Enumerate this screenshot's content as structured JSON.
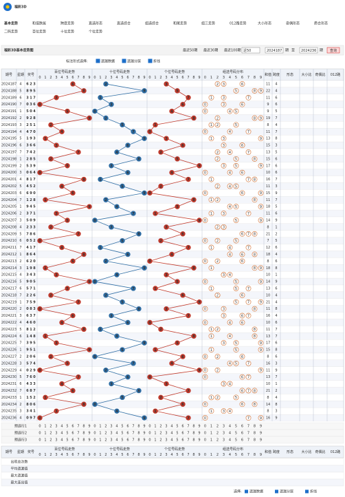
{
  "header": {
    "logo": "福彩3D",
    "tabs": [
      "基本走势",
      "和值跌属",
      "跨度走势",
      "直选形态",
      "直选综合",
      "组选综合",
      "和尾走势",
      "组三走势",
      "012路走势",
      "大小形态",
      "奇偶形态",
      "质合形态"
    ],
    "subtabs": [
      "二码走势",
      "百位走势",
      "十位走势",
      "个位走势"
    ]
  },
  "toolbar": {
    "title": "福彩3D基本走势图",
    "links": [
      "最近50期",
      "最近30期",
      "最近100期"
    ],
    "select": "近50",
    "from": 2024187,
    "unit": "期",
    "to_word": "至",
    "to": 2024236,
    "button": "查询"
  },
  "options": {
    "label": "标注形式选择:",
    "items": [
      "遗漏数据",
      "遗漏分层",
      "折线"
    ]
  },
  "table": {
    "head": [
      "期号",
      "星期",
      "奖号"
    ],
    "sections": [
      "百位号码走势",
      "十位号码走势",
      "个位号码走势",
      "组选号码分布"
    ],
    "extras": [
      "和值",
      "跨度",
      "形态",
      "大小比",
      "奇偶比",
      "012路"
    ],
    "digits": [
      0,
      1,
      2,
      3,
      4,
      5,
      6,
      7,
      8,
      9
    ],
    "rows": [
      {
        "period": 2024187,
        "week": 4,
        "digits": [
          6,
          2,
          3
        ],
        "sum": 11,
        "span": 4
      },
      {
        "period": 2024188,
        "week": 5,
        "digits": [
          8,
          9,
          5
        ],
        "sum": 22,
        "span": 4
      },
      {
        "period": 2024189,
        "week": 6,
        "digits": [
          3,
          1,
          7
        ],
        "sum": 11,
        "span": 6
      },
      {
        "period": 2024190,
        "week": 7,
        "digits": [
          0,
          3,
          6
        ],
        "sum": 9,
        "span": 6
      },
      {
        "period": 2024191,
        "week": 1,
        "digits": [
          5,
          0,
          4
        ],
        "sum": 9,
        "span": 5
      },
      {
        "period": 2024192,
        "week": 2,
        "digits": [
          9,
          2,
          8
        ],
        "sum": 19,
        "span": 7
      },
      {
        "period": 2024193,
        "week": 3,
        "digits": [
          2,
          5,
          1
        ],
        "sum": 8,
        "span": 4
      },
      {
        "period": 2024194,
        "week": 4,
        "digits": [
          4,
          7,
          0
        ],
        "sum": 11,
        "span": 7
      },
      {
        "period": 2024195,
        "week": 5,
        "digits": [
          1,
          9,
          3
        ],
        "sum": 13,
        "span": 8
      },
      {
        "period": 2024196,
        "week": 6,
        "digits": [
          3,
          6,
          6
        ],
        "sum": 15,
        "span": 3
      },
      {
        "period": 2024197,
        "week": 7,
        "digits": [
          7,
          4,
          2
        ],
        "sum": 13,
        "span": 5
      },
      {
        "period": 2024198,
        "week": 1,
        "digits": [
          2,
          8,
          5
        ],
        "sum": 15,
        "span": 6
      },
      {
        "period": 2024199,
        "week": 2,
        "digits": [
          5,
          3,
          9
        ],
        "sum": 17,
        "span": 6
      },
      {
        "period": 2024200,
        "week": 3,
        "digits": [
          0,
          6,
          4
        ],
        "sum": 10,
        "span": 6
      },
      {
        "period": 2024201,
        "week": 4,
        "digits": [
          8,
          1,
          7
        ],
        "sum": 16,
        "span": 7
      },
      {
        "period": 2024202,
        "week": 5,
        "digits": [
          4,
          5,
          2
        ],
        "sum": 11,
        "span": 3
      },
      {
        "period": 2024203,
        "week": 6,
        "digits": [
          6,
          9,
          0
        ],
        "sum": 15,
        "span": 9
      },
      {
        "period": 2024204,
        "week": 7,
        "digits": [
          1,
          2,
          8
        ],
        "sum": 11,
        "span": 7
      },
      {
        "period": 2024205,
        "week": 1,
        "digits": [
          9,
          4,
          5
        ],
        "sum": 18,
        "span": 5
      },
      {
        "period": 2024206,
        "week": 2,
        "digits": [
          3,
          7,
          1
        ],
        "sum": 11,
        "span": 6
      },
      {
        "period": 2024207,
        "week": 3,
        "digits": [
          5,
          0,
          9
        ],
        "sum": 14,
        "span": 9
      },
      {
        "period": 2024208,
        "week": 4,
        "digits": [
          2,
          3,
          3
        ],
        "sum": 8,
        "span": 1
      },
      {
        "period": 2024209,
        "week": 5,
        "digits": [
          7,
          8,
          6
        ],
        "sum": 21,
        "span": 2
      },
      {
        "period": 2024210,
        "week": 6,
        "digits": [
          0,
          5,
          2
        ],
        "sum": 7,
        "span": 5
      },
      {
        "period": 2024211,
        "week": 7,
        "digits": [
          4,
          1,
          7
        ],
        "sum": 12,
        "span": 6
      },
      {
        "period": 2024212,
        "week": 1,
        "digits": [
          8,
          6,
          4
        ],
        "sum": 18,
        "span": 4
      },
      {
        "period": 2024213,
        "week": 2,
        "digits": [
          6,
          2,
          0
        ],
        "sum": 8,
        "span": 6
      },
      {
        "period": 2024214,
        "week": 3,
        "digits": [
          1,
          9,
          8
        ],
        "sum": 18,
        "span": 8
      },
      {
        "period": 2024215,
        "week": 4,
        "digits": [
          3,
          4,
          3
        ],
        "sum": 10,
        "span": 1
      },
      {
        "period": 2024216,
        "week": 5,
        "digits": [
          9,
          0,
          5
        ],
        "sum": 14,
        "span": 9
      },
      {
        "period": 2024217,
        "week": 6,
        "digits": [
          5,
          7,
          1
        ],
        "sum": 13,
        "span": 6
      },
      {
        "period": 2024218,
        "week": 7,
        "digits": [
          2,
          2,
          6
        ],
        "sum": 10,
        "span": 4
      },
      {
        "period": 2024219,
        "week": 1,
        "digits": [
          7,
          5,
          9
        ],
        "sum": 21,
        "span": 4
      },
      {
        "period": 2024220,
        "week": 2,
        "digits": [
          0,
          8,
          3
        ],
        "sum": 11,
        "span": 8
      },
      {
        "period": 2024221,
        "week": 3,
        "digits": [
          6,
          3,
          7
        ],
        "sum": 16,
        "span": 4
      },
      {
        "period": 2024222,
        "week": 4,
        "digits": [
          4,
          6,
          0
        ],
        "sum": 10,
        "span": 6
      },
      {
        "period": 2024223,
        "week": 5,
        "digits": [
          8,
          1,
          2
        ],
        "sum": 11,
        "span": 7
      },
      {
        "period": 2024224,
        "week": 6,
        "digits": [
          1,
          4,
          8
        ],
        "sum": 13,
        "span": 7
      },
      {
        "period": 2024225,
        "week": 7,
        "digits": [
          3,
          9,
          5
        ],
        "sum": 17,
        "span": 6
      },
      {
        "period": 2024226,
        "week": 1,
        "digits": [
          9,
          5,
          1
        ],
        "sum": 15,
        "span": 8
      },
      {
        "period": 2024227,
        "week": 2,
        "digits": [
          2,
          0,
          6
        ],
        "sum": 8,
        "span": 6
      },
      {
        "period": 2024228,
        "week": 3,
        "digits": [
          5,
          7,
          4
        ],
        "sum": 16,
        "span": 3
      },
      {
        "period": 2024229,
        "week": 4,
        "digits": [
          0,
          2,
          9
        ],
        "sum": 11,
        "span": 9
      },
      {
        "period": 2024230,
        "week": 5,
        "digits": [
          7,
          6,
          0
        ],
        "sum": 13,
        "span": 7
      },
      {
        "period": 2024231,
        "week": 6,
        "digits": [
          4,
          3,
          3
        ],
        "sum": 10,
        "span": 1
      },
      {
        "period": 2024232,
        "week": 7,
        "digits": [
          6,
          8,
          7
        ],
        "sum": 21,
        "span": 2
      },
      {
        "period": 2024233,
        "week": 1,
        "digits": [
          1,
          5,
          2
        ],
        "sum": 8,
        "span": 4
      },
      {
        "period": 2024234,
        "week": 2,
        "digits": [
          8,
          0,
          6
        ],
        "sum": 14,
        "span": 8
      },
      {
        "period": 2024235,
        "week": 3,
        "digits": [
          3,
          4,
          1
        ],
        "sum": 8,
        "span": 3
      },
      {
        "period": 2024236,
        "week": 4,
        "digits": [
          0,
          9,
          7
        ],
        "sum": 16,
        "span": 9
      }
    ]
  },
  "footer": {
    "presel": [
      "预选行1",
      "预选行2",
      "预选行3"
    ],
    "stats": [
      "出现总次数",
      "平均遗漏值",
      "最大遗漏值",
      "最大连出值"
    ],
    "choose": "选择:"
  }
}
